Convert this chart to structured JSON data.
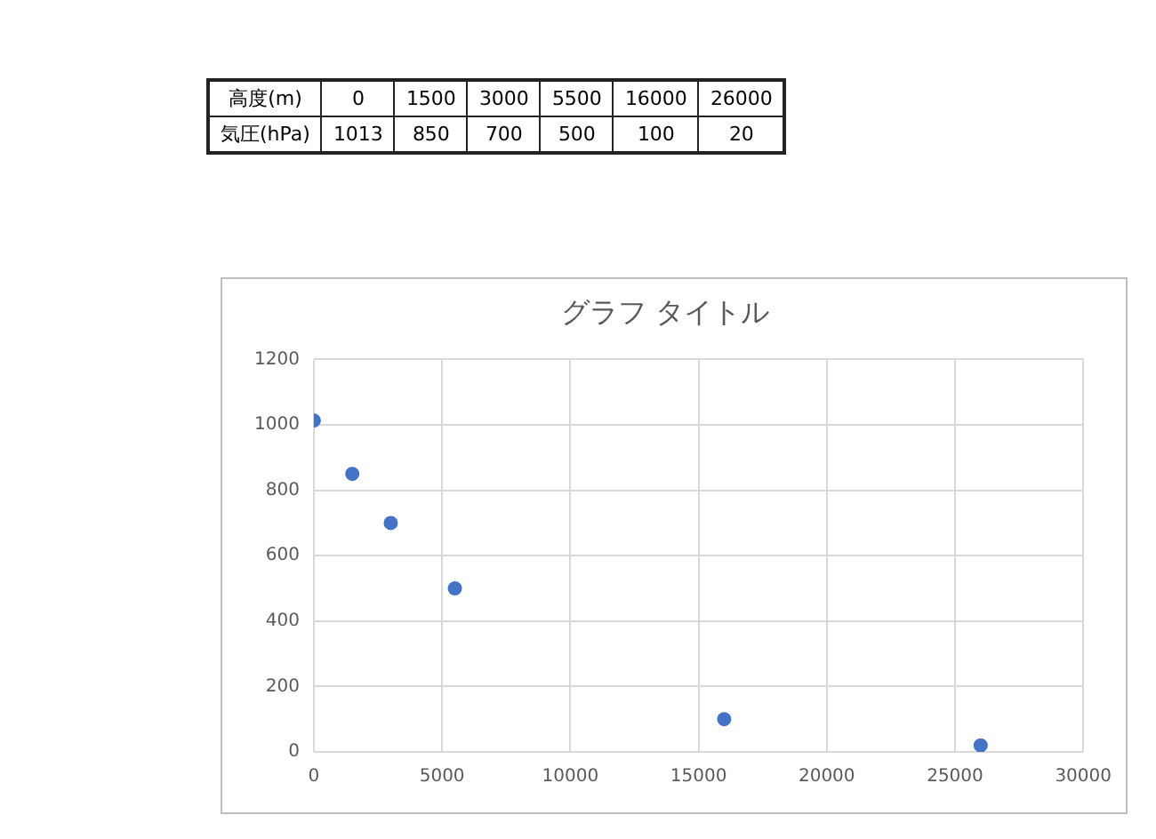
{
  "chart_data": {
    "type": "scatter",
    "title": "グラフ タイトル",
    "x": [
      0,
      1500,
      3000,
      5500,
      16000,
      26000
    ],
    "series": [
      {
        "color": "#4472c4",
        "values": [
          1013,
          850,
          700,
          500,
          100,
          20
        ]
      }
    ],
    "xlim": [
      0,
      30000
    ],
    "xticks": [
      0,
      5000,
      10000,
      15000,
      20000,
      25000,
      30000
    ],
    "ylim": [
      0,
      1200
    ],
    "yticks": [
      0,
      200,
      400,
      600,
      800,
      1000,
      1200
    ],
    "grid": true,
    "marker": "circle",
    "annotations": [
      "高度(m)",
      "0",
      "1500",
      "3000",
      "5500",
      "16000",
      "26000",
      "気圧(hPa)",
      "1013",
      "850",
      "700",
      "500",
      "100",
      "20"
    ]
  }
}
